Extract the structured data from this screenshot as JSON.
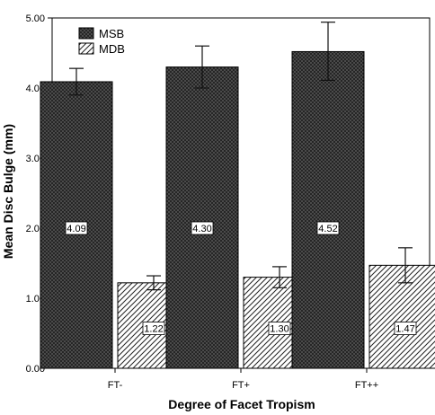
{
  "chart_data": {
    "type": "bar",
    "title": "",
    "xlabel": "Degree of Facet Tropism",
    "ylabel": "Mean Disc Bulge (mm)",
    "categories": [
      "FT-",
      "FT+",
      "FT++"
    ],
    "series": [
      {
        "name": "MSB",
        "values": [
          4.09,
          4.3,
          4.52
        ],
        "error_low": [
          3.9,
          4.0,
          4.11
        ],
        "error_high": [
          4.28,
          4.6,
          4.94
        ],
        "data_labels": [
          "4.09",
          "4.30",
          "4.52"
        ],
        "fill": "dense-crosshatch-dark"
      },
      {
        "name": "MDB",
        "values": [
          1.22,
          1.3,
          1.47
        ],
        "error_low": [
          1.12,
          1.15,
          1.22
        ],
        "error_high": [
          1.32,
          1.45,
          1.72
        ],
        "data_labels": [
          "1.22",
          "1.30",
          "1.47"
        ],
        "fill": "diagonal-hatch-light"
      }
    ],
    "ylim": [
      0,
      5.0
    ],
    "yticks": [
      "0.00",
      "1.00",
      "2.00",
      "3.00",
      "4.00",
      "5.00"
    ],
    "grid": false,
    "legend_position": "top-left",
    "colors": {
      "msb": "#2a2a2a",
      "mdb": "#ffffff",
      "axis": "#000000"
    }
  }
}
